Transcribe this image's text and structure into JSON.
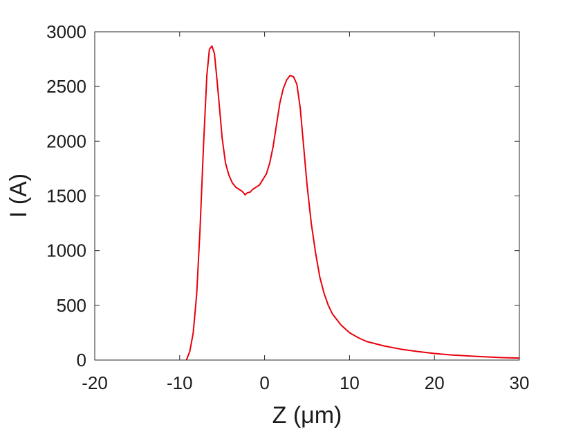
{
  "chart_data": {
    "type": "line",
    "title": "",
    "xlabel": "Z (μm)",
    "ylabel": "I (A)",
    "xlim": [
      -20,
      30
    ],
    "ylim": [
      0,
      3000
    ],
    "xticks": [
      -20,
      -10,
      0,
      10,
      20,
      30
    ],
    "yticks": [
      0,
      500,
      1000,
      1500,
      2000,
      2500,
      3000
    ],
    "grid": false,
    "legend": "none",
    "series": [
      {
        "color": "#e8000b",
        "x": [
          -9.2,
          -8.8,
          -8.4,
          -8.0,
          -7.6,
          -7.2,
          -6.8,
          -6.5,
          -6.2,
          -5.9,
          -5.6,
          -5.3,
          -5.0,
          -4.6,
          -4.2,
          -3.8,
          -3.4,
          -3.0,
          -2.6,
          -2.3,
          -2.0,
          -1.7,
          -1.4,
          -1.0,
          -0.6,
          -0.2,
          0.2,
          0.6,
          1.0,
          1.4,
          1.8,
          2.2,
          2.6,
          3.0,
          3.4,
          3.8,
          4.2,
          4.6,
          5.0,
          5.5,
          6.0,
          6.5,
          7.0,
          7.5,
          8.0,
          9.0,
          10.0,
          11.0,
          12.0,
          14.0,
          16.0,
          18.0,
          20.0,
          22.0,
          25.0,
          28.0,
          30.0
        ],
        "y": [
          0,
          80,
          250,
          600,
          1200,
          1950,
          2600,
          2840,
          2870,
          2800,
          2560,
          2300,
          2030,
          1800,
          1690,
          1620,
          1580,
          1560,
          1540,
          1510,
          1530,
          1535,
          1560,
          1580,
          1600,
          1650,
          1700,
          1800,
          1950,
          2150,
          2350,
          2480,
          2560,
          2600,
          2590,
          2520,
          2300,
          1950,
          1600,
          1250,
          980,
          760,
          610,
          500,
          420,
          320,
          250,
          205,
          170,
          130,
          100,
          78,
          60,
          47,
          33,
          22,
          18
        ]
      }
    ]
  }
}
